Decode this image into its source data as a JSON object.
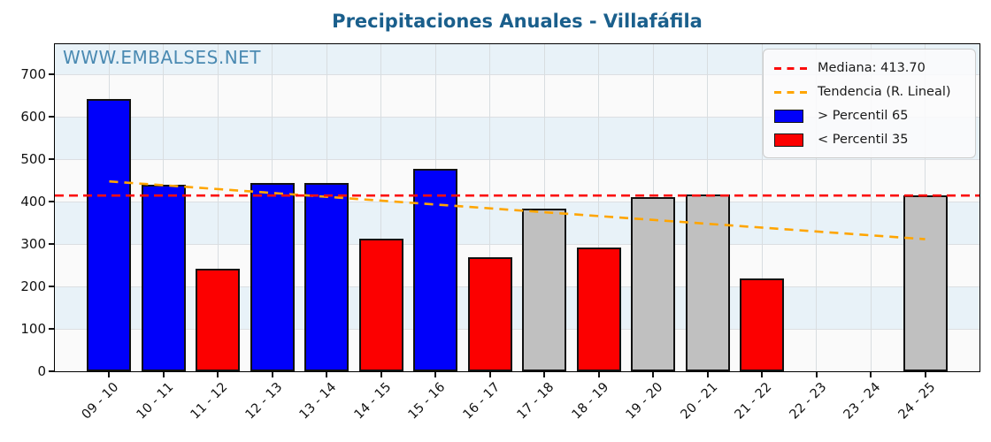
{
  "title": "Precipitaciones Anuales - Villafáfila",
  "watermark": "WWW.EMBALSES.NET",
  "legend": {
    "median_label": "Mediana: 413.70",
    "trend_label": "Tendencia (R. Lineal)",
    "p65_label": "> Percentil 65",
    "p35_label": "< Percentil 35"
  },
  "colors": {
    "p65": "#0000fa",
    "p35": "#fc0000",
    "mid": "#c0c0c0",
    "median_line": "#fb0d0d",
    "trend_line": "#ffa500",
    "band_white": "#fafafa",
    "band_blue": "#e8f2f8",
    "title_text": "#1a5f8c",
    "watermark_text": "#4a8ab2"
  },
  "chart_data": {
    "type": "bar",
    "title": "Precipitaciones Anuales - Villafáfila",
    "xlabel": "",
    "ylabel": "",
    "categories": [
      "09 - 10",
      "10 - 11",
      "11 - 12",
      "12 - 13",
      "13 - 14",
      "14 - 15",
      "15 - 16",
      "16 - 17",
      "17 - 18",
      "18 - 19",
      "19 - 20",
      "20 - 21",
      "21 - 22",
      "22 - 23",
      "23 - 24",
      "24 - 25"
    ],
    "values": [
      641,
      440,
      241,
      444,
      444,
      312,
      477,
      268,
      383,
      291,
      410,
      417,
      218,
      null,
      null,
      415
    ],
    "bar_classes": [
      "p65",
      "p65",
      "p35",
      "p65",
      "p65",
      "p35",
      "p65",
      "p35",
      "mid",
      "p35",
      "mid",
      "mid",
      "p35",
      null,
      null,
      "mid"
    ],
    "median": 413.7,
    "trend": {
      "start": 447,
      "end": 311
    },
    "ylim": [
      0,
      770
    ],
    "yticks": [
      0,
      100,
      200,
      300,
      400,
      500,
      600,
      700
    ],
    "grid": true,
    "legend_position": "upper right",
    "series_legend": [
      {
        "label": "Mediana: 413.70",
        "style": "dashed",
        "color": "#fb0d0d"
      },
      {
        "label": "Tendencia (R. Lineal)",
        "style": "dashed",
        "color": "#ffa500"
      },
      {
        "label": "> Percentil 65",
        "style": "patch",
        "color": "#0000fa"
      },
      {
        "label": "< Percentil 35",
        "style": "patch",
        "color": "#fc0000"
      }
    ]
  }
}
